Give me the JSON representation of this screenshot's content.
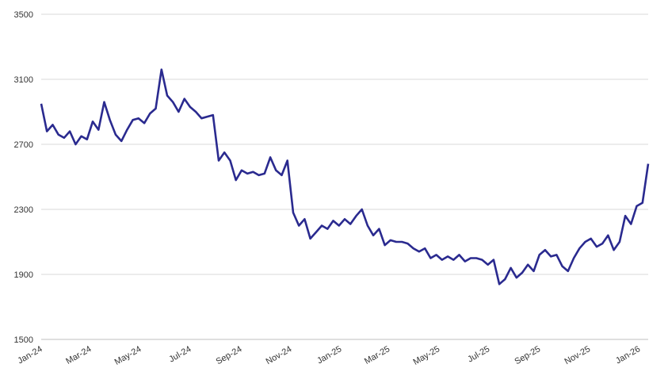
{
  "chart_data": {
    "type": "line",
    "title": "",
    "xlabel": "",
    "ylabel": "",
    "ylim": [
      1500,
      3500
    ],
    "yticks": [
      "3500",
      "3100",
      "2700",
      "2300",
      "1900",
      "1500"
    ],
    "xticks": [
      "Jan-24",
      "Mar-24",
      "May-24",
      "Jul-24",
      "Sep-24",
      "Nov-24",
      "Jan-25",
      "Mar-25",
      "May-25",
      "Jul-25",
      "Sep-25",
      "Nov-25",
      "Jan-26"
    ],
    "grid": "horizontal",
    "legend": "none",
    "line_color": "#2a2a8f",
    "series": [
      {
        "x": [
          "2024-01-01",
          "2024-01-08",
          "2024-01-15",
          "2024-01-22",
          "2024-01-29",
          "2024-02-05",
          "2024-02-12",
          "2024-02-19",
          "2024-02-26",
          "2024-03-04",
          "2024-03-11",
          "2024-03-18",
          "2024-03-25",
          "2024-04-01",
          "2024-04-08",
          "2024-04-15",
          "2024-04-22",
          "2024-04-29",
          "2024-05-06",
          "2024-05-13",
          "2024-05-20",
          "2024-05-27",
          "2024-06-03",
          "2024-06-10",
          "2024-06-17",
          "2024-06-24",
          "2024-07-01",
          "2024-07-08",
          "2024-07-15",
          "2024-07-22",
          "2024-07-29",
          "2024-08-05",
          "2024-08-12",
          "2024-08-19",
          "2024-08-26",
          "2024-09-02",
          "2024-09-09",
          "2024-09-16",
          "2024-09-23",
          "2024-09-30",
          "2024-10-07",
          "2024-10-14",
          "2024-10-21",
          "2024-10-28",
          "2024-11-04",
          "2024-11-11",
          "2024-11-18",
          "2024-11-25",
          "2024-12-02",
          "2024-12-09",
          "2024-12-16",
          "2024-12-23",
          "2024-12-30",
          "2025-01-06",
          "2025-01-13",
          "2025-01-20",
          "2025-01-27",
          "2025-02-03",
          "2025-02-10",
          "2025-02-17",
          "2025-02-24",
          "2025-03-03",
          "2025-03-10",
          "2025-03-17",
          "2025-03-24",
          "2025-03-31",
          "2025-04-07",
          "2025-04-14",
          "2025-04-21",
          "2025-04-28",
          "2025-05-05",
          "2025-05-12",
          "2025-05-19",
          "2025-05-26",
          "2025-06-02",
          "2025-06-09",
          "2025-06-16",
          "2025-06-23",
          "2025-06-30",
          "2025-07-07",
          "2025-07-14",
          "2025-07-21",
          "2025-07-28",
          "2025-08-04",
          "2025-08-11",
          "2025-08-18",
          "2025-08-25",
          "2025-09-01",
          "2025-09-08",
          "2025-09-15",
          "2025-09-22",
          "2025-09-29",
          "2025-10-06",
          "2025-10-13",
          "2025-10-20",
          "2025-10-27",
          "2025-11-03",
          "2025-11-10",
          "2025-11-17",
          "2025-11-24",
          "2025-12-01",
          "2025-12-08",
          "2025-12-15",
          "2025-12-22",
          "2025-12-29",
          "2026-01-05",
          "2026-01-12"
        ],
        "y": [
          2950,
          2780,
          2820,
          2760,
          2740,
          2780,
          2700,
          2750,
          2730,
          2840,
          2790,
          2960,
          2850,
          2760,
          2720,
          2790,
          2850,
          2860,
          2830,
          2890,
          2920,
          3160,
          3000,
          2960,
          2900,
          2980,
          2930,
          2900,
          2860,
          2870,
          2880,
          2600,
          2650,
          2600,
          2480,
          2540,
          2520,
          2530,
          2510,
          2520,
          2620,
          2540,
          2510,
          2600,
          2280,
          2200,
          2240,
          2120,
          2160,
          2200,
          2180,
          2230,
          2200,
          2240,
          2210,
          2260,
          2300,
          2200,
          2140,
          2180,
          2080,
          2110,
          2100,
          2100,
          2090,
          2060,
          2040,
          2060,
          2000,
          2020,
          1990,
          2010,
          1990,
          2020,
          1980,
          2000,
          2000,
          1990,
          1960,
          1990,
          1840,
          1870,
          1940,
          1880,
          1910,
          1960,
          1920,
          2020,
          2050,
          2010,
          2020,
          1950,
          1920,
          2000,
          2060,
          2100,
          2120,
          2070,
          2090,
          2140,
          2050,
          2100,
          2260,
          2210,
          2320,
          2340,
          2580
        ]
      }
    ]
  }
}
